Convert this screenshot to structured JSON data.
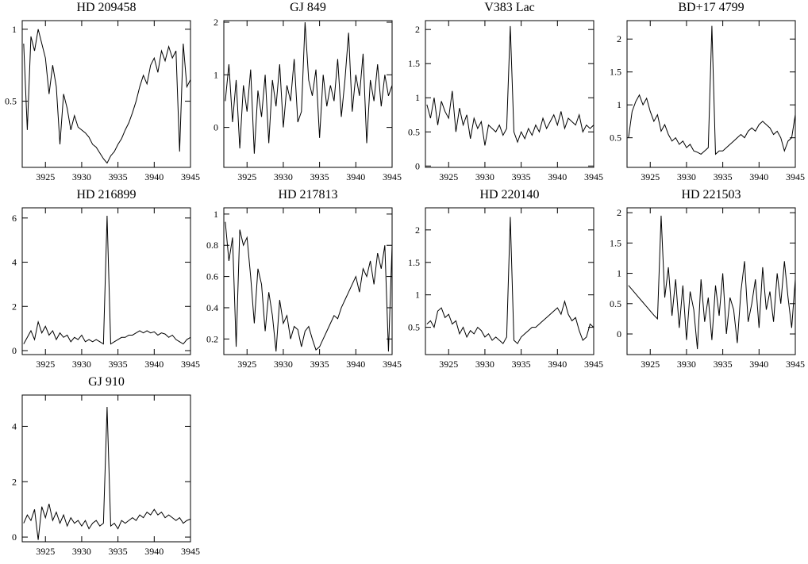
{
  "chart_data": [
    {
      "type": "line",
      "title": "HD 209458",
      "x": [
        3922,
        3922.5,
        3923,
        3923.5,
        3924,
        3924.5,
        3925,
        3925.5,
        3926,
        3926.5,
        3927,
        3927.5,
        3928,
        3928.5,
        3929,
        3929.5,
        3930,
        3930.5,
        3931,
        3931.5,
        3932,
        3932.5,
        3933,
        3933.5,
        3934,
        3934.5,
        3935,
        3935.5,
        3936,
        3936.5,
        3937,
        3937.5,
        3938,
        3938.5,
        3939,
        3939.5,
        3940,
        3940.5,
        3941,
        3941.5,
        3942,
        3942.5,
        3943,
        3943.5,
        3944,
        3944.5,
        3945
      ],
      "values": [
        0.9,
        0.3,
        0.95,
        0.85,
        1.0,
        0.9,
        0.8,
        0.55,
        0.75,
        0.6,
        0.2,
        0.55,
        0.45,
        0.3,
        0.4,
        0.32,
        0.3,
        0.28,
        0.25,
        0.2,
        0.18,
        0.14,
        0.1,
        0.07,
        0.12,
        0.15,
        0.2,
        0.24,
        0.3,
        0.35,
        0.42,
        0.5,
        0.6,
        0.68,
        0.62,
        0.75,
        0.8,
        0.7,
        0.85,
        0.78,
        0.88,
        0.8,
        0.85,
        0.15,
        0.9,
        0.6,
        0.65
      ],
      "xlim": [
        3921.8,
        3945
      ],
      "xticks": [
        3925,
        3930,
        3935,
        3940,
        3945
      ],
      "ylim": [
        0.04,
        1.06
      ],
      "yticks": [
        0.5,
        1
      ],
      "color": "#000000"
    },
    {
      "type": "line",
      "title": "GJ 849",
      "x": [
        3922,
        3922.5,
        3923,
        3923.5,
        3924,
        3924.5,
        3925,
        3925.5,
        3926,
        3926.5,
        3927,
        3927.5,
        3928,
        3928.5,
        3929,
        3929.5,
        3930,
        3930.5,
        3931,
        3931.5,
        3932,
        3932.5,
        3933,
        3933.5,
        3934,
        3934.5,
        3935,
        3935.5,
        3936,
        3936.5,
        3937,
        3937.5,
        3938,
        3938.5,
        3939,
        3939.5,
        3940,
        3940.5,
        3941,
        3941.5,
        3942,
        3942.5,
        3943,
        3943.5,
        3944,
        3944.5,
        3945
      ],
      "values": [
        0.5,
        1.2,
        0.1,
        0.9,
        -0.4,
        0.8,
        0.3,
        1.1,
        -0.5,
        0.7,
        0.2,
        1.0,
        -0.3,
        0.9,
        0.4,
        1.2,
        0.0,
        0.8,
        0.5,
        1.3,
        0.1,
        0.3,
        2.0,
        0.9,
        0.6,
        1.1,
        -0.2,
        1.0,
        0.4,
        0.8,
        0.5,
        1.3,
        0.2,
        0.9,
        1.8,
        0.3,
        1.0,
        0.6,
        1.4,
        -0.3,
        0.9,
        0.5,
        1.2,
        0.4,
        1.0,
        0.6,
        0.8
      ],
      "xlim": [
        3921.8,
        3945
      ],
      "xticks": [
        3925,
        3930,
        3935,
        3940,
        3945
      ],
      "ylim": [
        -0.76,
        2.03
      ],
      "yticks": [
        0,
        1,
        2
      ],
      "color": "#000000"
    },
    {
      "type": "line",
      "title": "V383 Lac",
      "x": [
        3922,
        3922.5,
        3923,
        3923.5,
        3924,
        3924.5,
        3925,
        3925.5,
        3926,
        3926.5,
        3927,
        3927.5,
        3928,
        3928.5,
        3929,
        3929.5,
        3930,
        3930.5,
        3931,
        3931.5,
        3932,
        3932.5,
        3933,
        3933.5,
        3934,
        3934.5,
        3935,
        3935.5,
        3936,
        3936.5,
        3937,
        3937.5,
        3938,
        3938.5,
        3939,
        3939.5,
        3940,
        3940.5,
        3941,
        3941.5,
        3942,
        3942.5,
        3943,
        3943.5,
        3944,
        3944.5,
        3945
      ],
      "values": [
        0.9,
        0.7,
        1.0,
        0.6,
        0.95,
        0.8,
        0.7,
        1.1,
        0.5,
        0.85,
        0.6,
        0.75,
        0.4,
        0.7,
        0.55,
        0.65,
        0.3,
        0.6,
        0.55,
        0.5,
        0.6,
        0.45,
        0.55,
        2.05,
        0.5,
        0.35,
        0.5,
        0.4,
        0.55,
        0.45,
        0.6,
        0.5,
        0.7,
        0.55,
        0.65,
        0.75,
        0.6,
        0.8,
        0.55,
        0.7,
        0.65,
        0.6,
        0.75,
        0.5,
        0.6,
        0.55,
        0.6
      ],
      "xlim": [
        3921.8,
        3945
      ],
      "xticks": [
        3925,
        3930,
        3935,
        3940,
        3945
      ],
      "ylim": [
        -0.02,
        2.13
      ],
      "yticks": [
        0,
        0.5,
        1,
        1.5,
        2
      ],
      "color": "#000000"
    },
    {
      "type": "line",
      "title": "BD+17 4799",
      "x": [
        3922,
        3922.5,
        3923,
        3923.5,
        3924,
        3924.5,
        3925,
        3925.5,
        3926,
        3926.5,
        3927,
        3927.5,
        3928,
        3928.5,
        3929,
        3929.5,
        3930,
        3930.5,
        3931,
        3931.5,
        3932,
        3932.5,
        3933,
        3933.5,
        3934,
        3934.5,
        3935,
        3935.5,
        3936,
        3936.5,
        3937,
        3937.5,
        3938,
        3938.5,
        3939,
        3939.5,
        3940,
        3940.5,
        3941,
        3941.5,
        3942,
        3942.5,
        3943,
        3943.5,
        3944,
        3944.5,
        3945
      ],
      "values": [
        0.5,
        0.9,
        1.05,
        1.15,
        1.0,
        1.1,
        0.9,
        0.75,
        0.85,
        0.6,
        0.7,
        0.55,
        0.45,
        0.5,
        0.4,
        0.45,
        0.35,
        0.4,
        0.3,
        0.28,
        0.25,
        0.3,
        0.35,
        2.2,
        0.25,
        0.3,
        0.3,
        0.35,
        0.4,
        0.45,
        0.5,
        0.55,
        0.5,
        0.6,
        0.65,
        0.6,
        0.7,
        0.75,
        0.7,
        0.65,
        0.55,
        0.6,
        0.5,
        0.3,
        0.45,
        0.5,
        0.85
      ],
      "xlim": [
        3921.8,
        3945
      ],
      "xticks": [
        3925,
        3930,
        3935,
        3940,
        3945
      ],
      "ylim": [
        0.05,
        2.28
      ],
      "yticks": [
        0.5,
        1,
        1.5,
        2
      ],
      "color": "#000000"
    },
    {
      "type": "line",
      "title": "HD 216899",
      "x": [
        3922,
        3922.5,
        3923,
        3923.5,
        3924,
        3924.5,
        3925,
        3925.5,
        3926,
        3926.5,
        3927,
        3927.5,
        3928,
        3928.5,
        3929,
        3929.5,
        3930,
        3930.5,
        3931,
        3931.5,
        3932,
        3932.5,
        3933,
        3933.5,
        3934,
        3934.5,
        3935,
        3935.5,
        3936,
        3936.5,
        3937,
        3937.5,
        3938,
        3938.5,
        3939,
        3939.5,
        3940,
        3940.5,
        3941,
        3941.5,
        3942,
        3942.5,
        3943,
        3943.5,
        3944,
        3944.5,
        3945
      ],
      "values": [
        0.3,
        0.6,
        0.9,
        0.5,
        1.3,
        0.8,
        1.1,
        0.7,
        0.9,
        0.5,
        0.8,
        0.6,
        0.7,
        0.4,
        0.6,
        0.5,
        0.7,
        0.4,
        0.5,
        0.4,
        0.5,
        0.4,
        0.3,
        6.1,
        0.3,
        0.4,
        0.5,
        0.6,
        0.6,
        0.7,
        0.7,
        0.8,
        0.9,
        0.8,
        0.9,
        0.8,
        0.85,
        0.7,
        0.8,
        0.75,
        0.6,
        0.7,
        0.5,
        0.4,
        0.3,
        0.5,
        0.6
      ],
      "xlim": [
        3921.8,
        3945
      ],
      "xticks": [
        3925,
        3930,
        3935,
        3940,
        3945
      ],
      "ylim": [
        -0.18,
        6.46
      ],
      "yticks": [
        0,
        2,
        4,
        6
      ],
      "color": "#000000"
    },
    {
      "type": "line",
      "title": "HD 217813",
      "x": [
        3922,
        3922.5,
        3923,
        3923.5,
        3924,
        3924.5,
        3925,
        3925.5,
        3926,
        3926.5,
        3927,
        3927.5,
        3928,
        3928.5,
        3929,
        3929.5,
        3930,
        3930.5,
        3931,
        3931.5,
        3932,
        3932.5,
        3933,
        3933.5,
        3934,
        3934.5,
        3935,
        3935.5,
        3936,
        3936.5,
        3937,
        3937.5,
        3938,
        3938.5,
        3939,
        3939.5,
        3940,
        3940.5,
        3941,
        3941.5,
        3942,
        3942.5,
        3943,
        3943.5,
        3944,
        3944.5,
        3945
      ],
      "values": [
        0.95,
        0.7,
        0.85,
        0.15,
        0.9,
        0.8,
        0.85,
        0.6,
        0.3,
        0.65,
        0.55,
        0.25,
        0.5,
        0.35,
        0.12,
        0.45,
        0.3,
        0.35,
        0.2,
        0.28,
        0.26,
        0.15,
        0.25,
        0.28,
        0.2,
        0.13,
        0.15,
        0.2,
        0.25,
        0.3,
        0.35,
        0.33,
        0.4,
        0.45,
        0.5,
        0.55,
        0.6,
        0.5,
        0.65,
        0.6,
        0.7,
        0.55,
        0.75,
        0.65,
        0.8,
        0.12,
        0.8
      ],
      "xlim": [
        3921.8,
        3945
      ],
      "xticks": [
        3925,
        3930,
        3935,
        3940,
        3945
      ],
      "ylim": [
        0.1,
        1.04
      ],
      "yticks": [
        0.2,
        0.4,
        0.6,
        0.8,
        1
      ],
      "color": "#000000"
    },
    {
      "type": "line",
      "title": "HD 220140",
      "x": [
        3922,
        3922.5,
        3923,
        3923.5,
        3924,
        3924.5,
        3925,
        3925.5,
        3926,
        3926.5,
        3927,
        3927.5,
        3928,
        3928.5,
        3929,
        3929.5,
        3930,
        3930.5,
        3931,
        3931.5,
        3932,
        3932.5,
        3933,
        3933.5,
        3934,
        3934.5,
        3935,
        3935.5,
        3936,
        3936.5,
        3937,
        3937.5,
        3938,
        3938.5,
        3939,
        3939.5,
        3940,
        3940.5,
        3941,
        3941.5,
        3942,
        3942.5,
        3943,
        3943.5,
        3944,
        3944.5,
        3945
      ],
      "values": [
        0.55,
        0.6,
        0.5,
        0.75,
        0.8,
        0.65,
        0.7,
        0.55,
        0.6,
        0.4,
        0.5,
        0.35,
        0.45,
        0.4,
        0.5,
        0.45,
        0.35,
        0.4,
        0.3,
        0.35,
        0.3,
        0.25,
        0.35,
        2.2,
        0.3,
        0.25,
        0.35,
        0.4,
        0.45,
        0.5,
        0.5,
        0.55,
        0.6,
        0.65,
        0.7,
        0.75,
        0.8,
        0.7,
        0.9,
        0.7,
        0.6,
        0.65,
        0.45,
        0.3,
        0.35,
        0.55,
        0.5
      ],
      "xlim": [
        3921.8,
        3945
      ],
      "xticks": [
        3925,
        3930,
        3935,
        3940,
        3945
      ],
      "ylim": [
        0.08,
        2.34
      ],
      "yticks": [
        0.5,
        1,
        1.5,
        2
      ],
      "color": "#000000"
    },
    {
      "type": "line",
      "title": "HD 221503",
      "x": [
        3922,
        3922.5,
        3923,
        3923.5,
        3924,
        3924.5,
        3925,
        3925.5,
        3926,
        3926.5,
        3927,
        3927.5,
        3928,
        3928.5,
        3929,
        3929.5,
        3930,
        3930.5,
        3931,
        3931.5,
        3932,
        3932.5,
        3933,
        3933.5,
        3934,
        3934.5,
        3935,
        3935.5,
        3936,
        3936.5,
        3937,
        3937.5,
        3938,
        3938.5,
        3939,
        3939.5,
        3940,
        3940.5,
        3941,
        3941.5,
        3942,
        3942.5,
        3943,
        3943.5,
        3944,
        3944.5,
        3945
      ],
      "values": [
        0.8,
        0.73,
        0.66,
        0.59,
        0.52,
        0.45,
        0.38,
        0.31,
        0.25,
        1.95,
        0.6,
        1.1,
        0.3,
        0.9,
        0.1,
        0.8,
        -0.1,
        0.7,
        0.4,
        -0.25,
        0.9,
        0.2,
        0.6,
        -0.1,
        0.8,
        0.3,
        1.0,
        0.0,
        0.6,
        0.4,
        -0.15,
        0.7,
        1.2,
        0.2,
        0.5,
        0.9,
        0.1,
        1.1,
        0.4,
        0.7,
        0.2,
        1.0,
        0.5,
        1.2,
        0.6,
        0.1,
        0.9
      ],
      "xlim": [
        3921.8,
        3945
      ],
      "xticks": [
        3925,
        3930,
        3935,
        3940,
        3945
      ],
      "ylim": [
        -0.34,
        2.08
      ],
      "yticks": [
        0,
        0.5,
        1,
        1.5,
        2
      ],
      "color": "#000000"
    },
    {
      "type": "line",
      "title": "GJ 910",
      "x": [
        3922,
        3922.5,
        3923,
        3923.5,
        3924,
        3924.5,
        3925,
        3925.5,
        3926,
        3926.5,
        3927,
        3927.5,
        3928,
        3928.5,
        3929,
        3929.5,
        3930,
        3930.5,
        3931,
        3931.5,
        3932,
        3932.5,
        3933,
        3933.5,
        3934,
        3934.5,
        3935,
        3935.5,
        3936,
        3936.5,
        3937,
        3937.5,
        3938,
        3938.5,
        3939,
        3939.5,
        3940,
        3940.5,
        3941,
        3941.5,
        3942,
        3942.5,
        3943,
        3943.5,
        3944,
        3944.5,
        3945
      ],
      "values": [
        0.5,
        0.8,
        0.6,
        1.0,
        -0.1,
        1.1,
        0.7,
        1.2,
        0.6,
        0.9,
        0.5,
        0.8,
        0.4,
        0.7,
        0.5,
        0.6,
        0.4,
        0.6,
        0.3,
        0.5,
        0.6,
        0.4,
        0.5,
        4.7,
        0.4,
        0.5,
        0.3,
        0.6,
        0.5,
        0.6,
        0.7,
        0.6,
        0.8,
        0.7,
        0.9,
        0.8,
        1.0,
        0.8,
        0.9,
        0.7,
        0.8,
        0.7,
        0.6,
        0.7,
        0.5,
        0.6,
        0.65
      ],
      "xlim": [
        3921.8,
        3945
      ],
      "xticks": [
        3925,
        3930,
        3935,
        3940,
        3945
      ],
      "ylim": [
        -0.17,
        5.13
      ],
      "yticks": [
        0,
        2,
        4
      ],
      "color": "#000000"
    }
  ]
}
